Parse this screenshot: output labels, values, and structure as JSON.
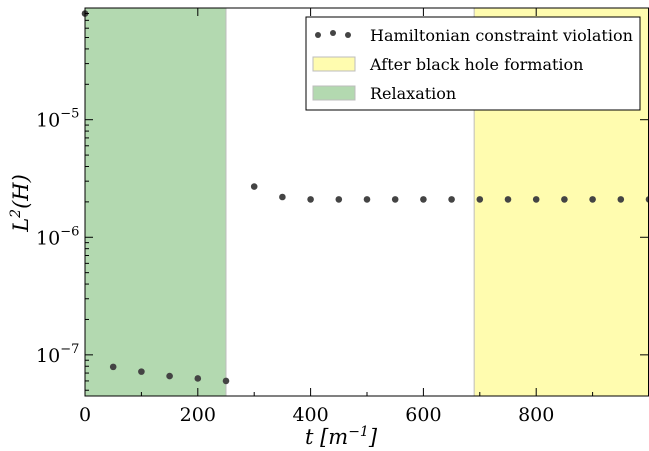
{
  "chart_data": {
    "type": "scatter",
    "title": "",
    "xlabel": "t [m⁻¹]",
    "ylabel": "L²(H)",
    "xlim": [
      0,
      1000
    ],
    "ylim_log10": [
      -7.35,
      -4.05
    ],
    "yscale": "log",
    "grid": false,
    "legend_position": "top-right",
    "x_ticks": [
      {
        "value": 0,
        "label": "0"
      },
      {
        "value": 200,
        "label": "200"
      },
      {
        "value": 400,
        "label": "400"
      },
      {
        "value": 600,
        "label": "600"
      },
      {
        "value": 800,
        "label": "800"
      }
    ],
    "y_ticks": [
      {
        "exp": -7,
        "base": "10",
        "sup": "−7"
      },
      {
        "exp": -6,
        "base": "10",
        "sup": "−6"
      },
      {
        "exp": -5,
        "base": "10",
        "sup": "−5"
      }
    ],
    "regions": [
      {
        "name": "Relaxation",
        "x_start": 0,
        "x_end": 250,
        "color": "#b3d9b0"
      },
      {
        "name": "After black hole formation",
        "x_start": 690,
        "x_end": 1000,
        "color": "#fffcaf"
      }
    ],
    "series": [
      {
        "name": "Hamiltonian constraint violation",
        "color": "#444444",
        "x": [
          0,
          50,
          100,
          150,
          200,
          250,
          300,
          350,
          400,
          450,
          500,
          550,
          600,
          650,
          700,
          750,
          800,
          850,
          900,
          950,
          1000
        ],
        "y": [
          8e-05,
          7.9e-08,
          7.2e-08,
          6.6e-08,
          6.3e-08,
          6e-08,
          2.7e-06,
          2.2e-06,
          2.1e-06,
          2.1e-06,
          2.1e-06,
          2.1e-06,
          2.1e-06,
          2.1e-06,
          2.1e-06,
          2.1e-06,
          2.1e-06,
          2.1e-06,
          2.1e-06,
          2.1e-06,
          2.1e-06
        ]
      }
    ],
    "legend": {
      "entries": [
        {
          "label": "Hamiltonian constraint violation",
          "kind": "marker",
          "color": "#444444"
        },
        {
          "label": "After black hole formation",
          "kind": "patch",
          "color": "#fffcaf"
        },
        {
          "label": "Relaxation",
          "kind": "patch",
          "color": "#b3d9b0"
        }
      ]
    }
  }
}
